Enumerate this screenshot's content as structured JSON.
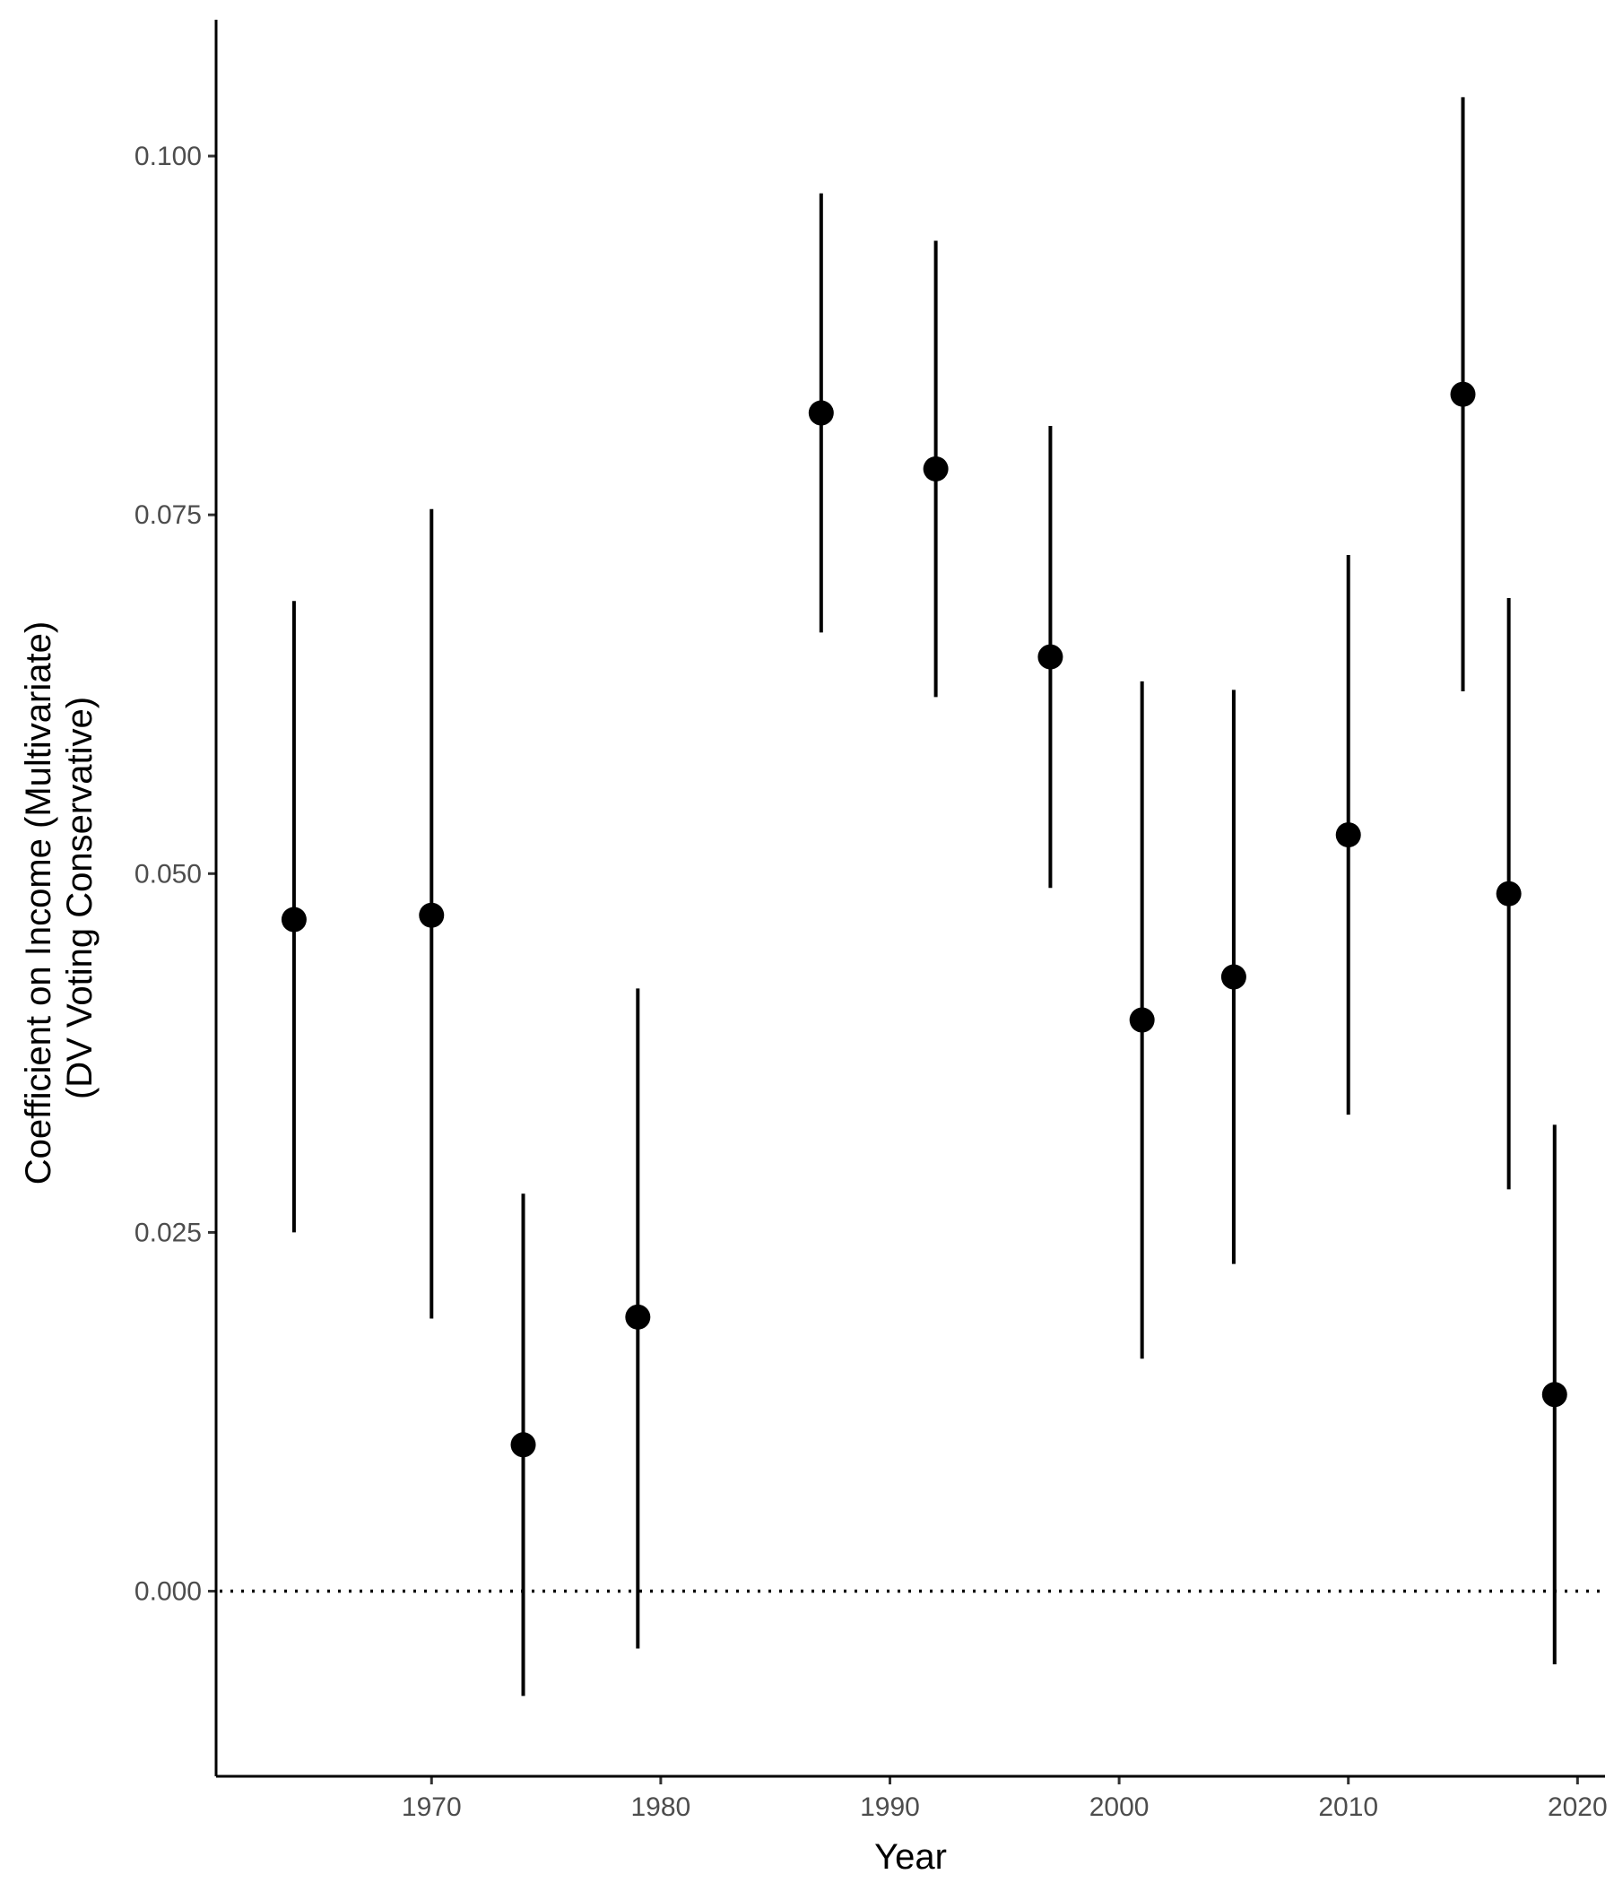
{
  "chart_data": {
    "type": "scatter",
    "xlabel": "Year",
    "ylabel_lines": [
      "Coefficient on Income (Multivariate)",
      "(DV Voting Conservative)"
    ],
    "x_ticks": [
      1970,
      1980,
      1990,
      2000,
      2010,
      2020
    ],
    "y_ticks": [
      "0.000",
      "0.025",
      "0.050",
      "0.075",
      "0.100"
    ],
    "xlim": [
      1960.6,
      2021.2
    ],
    "ylim": [
      -0.0129,
      0.1095
    ],
    "reference_line": {
      "y": 0,
      "style": "dotted"
    },
    "grid": false,
    "points": [
      {
        "year": 1964,
        "estimate": 0.0468,
        "lower": 0.025,
        "upper": 0.069
      },
      {
        "year": 1970,
        "estimate": 0.0471,
        "lower": 0.019,
        "upper": 0.0754
      },
      {
        "year": 1974,
        "estimate": 0.0102,
        "lower": -0.0073,
        "upper": 0.0277
      },
      {
        "year": 1979,
        "estimate": 0.0191,
        "lower": -0.004,
        "upper": 0.042
      },
      {
        "year": 1987,
        "estimate": 0.0821,
        "lower": 0.0668,
        "upper": 0.0974
      },
      {
        "year": 1992,
        "estimate": 0.0782,
        "lower": 0.0623,
        "upper": 0.0941
      },
      {
        "year": 1997,
        "estimate": 0.0651,
        "lower": 0.049,
        "upper": 0.0812
      },
      {
        "year": 2001,
        "estimate": 0.0398,
        "lower": 0.0162,
        "upper": 0.0634
      },
      {
        "year": 2005,
        "estimate": 0.0428,
        "lower": 0.0228,
        "upper": 0.0628
      },
      {
        "year": 2010,
        "estimate": 0.0527,
        "lower": 0.0332,
        "upper": 0.0722
      },
      {
        "year": 2015,
        "estimate": 0.0834,
        "lower": 0.0627,
        "upper": 0.1041
      },
      {
        "year": 2017,
        "estimate": 0.0486,
        "lower": 0.028,
        "upper": 0.0692
      },
      {
        "year": 2019,
        "estimate": 0.0137,
        "lower": -0.0051,
        "upper": 0.0325
      }
    ]
  }
}
